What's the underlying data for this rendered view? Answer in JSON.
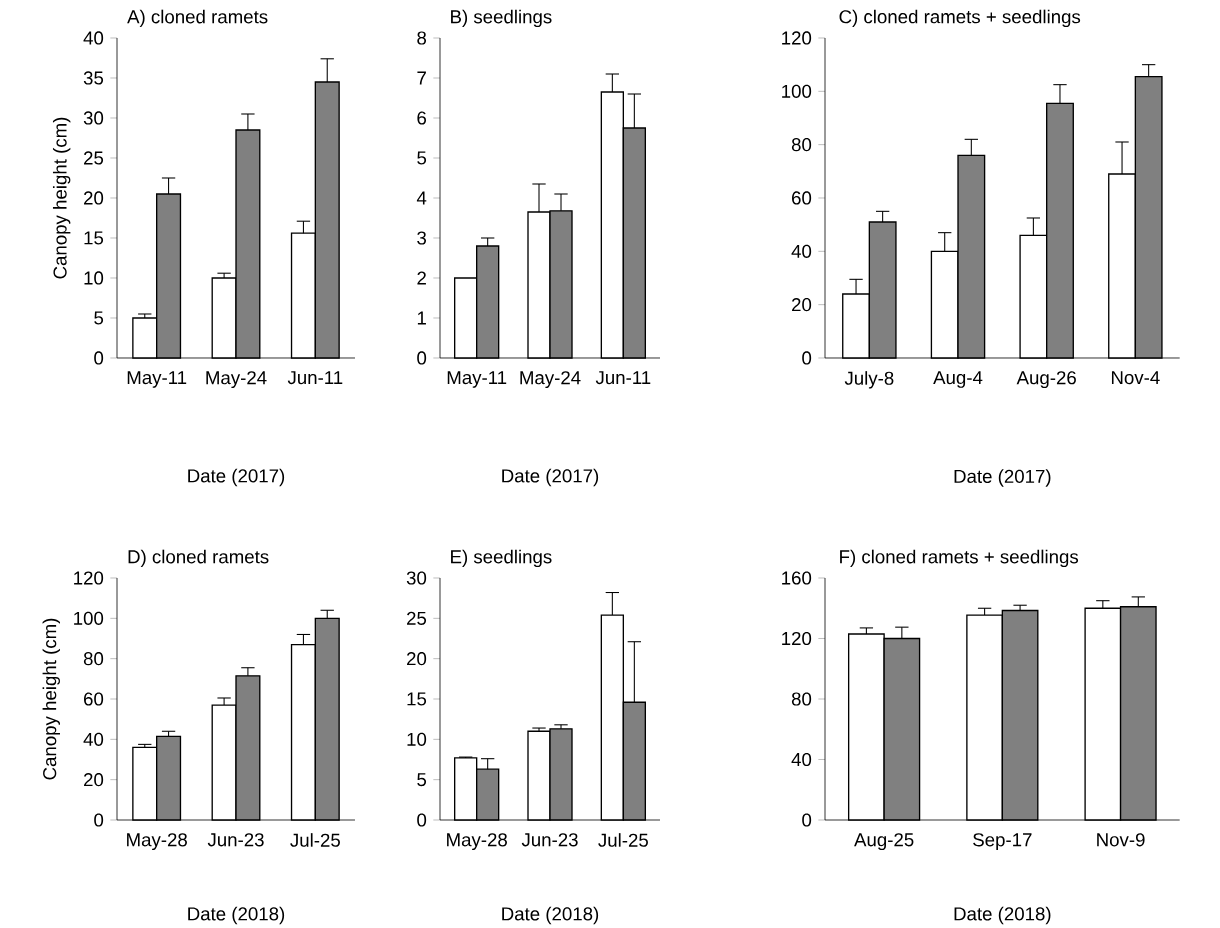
{
  "chart_data": [
    {
      "type": "bar",
      "title": "A) cloned ramets",
      "xlabel": "Date (2017)",
      "ylabel": "Canopy height (cm)",
      "categories": [
        "May-11",
        "May-24",
        "Jun-11"
      ],
      "ylim": [
        0,
        40
      ],
      "yticks": [
        0,
        5,
        10,
        15,
        20,
        25,
        30,
        35,
        40
      ],
      "series": [
        {
          "color": "#ffffff",
          "values": [
            5.0,
            10.0,
            15.6
          ],
          "errors": [
            [
              5.0,
              5.5
            ],
            [
              10.0,
              10.6
            ],
            [
              15.6,
              17.1
            ]
          ]
        },
        {
          "color": "#808080",
          "values": [
            20.5,
            28.5,
            34.5
          ],
          "errors": [
            [
              20.5,
              22.5
            ],
            [
              28.5,
              30.5
            ],
            [
              34.5,
              37.4
            ]
          ]
        }
      ]
    },
    {
      "type": "bar",
      "title": "B) seedlings",
      "xlabel": "Date (2017)",
      "categories": [
        "May-11",
        "May-24",
        "Jun-11"
      ],
      "ylim": [
        0,
        8
      ],
      "yticks": [
        0,
        1,
        2,
        3,
        4,
        5,
        6,
        7,
        8
      ],
      "series": [
        {
          "color": "#ffffff",
          "values": [
            2.0,
            3.65,
            6.65
          ],
          "errors": [
            null,
            [
              3.65,
              4.35
            ],
            [
              6.65,
              7.1
            ]
          ]
        },
        {
          "color": "#808080",
          "values": [
            2.8,
            3.68,
            5.75
          ],
          "errors": [
            [
              2.8,
              3.0
            ],
            [
              3.68,
              4.1
            ],
            [
              5.75,
              6.6
            ]
          ]
        }
      ]
    },
    {
      "type": "bar",
      "title": "C) cloned ramets + seedlings",
      "xlabel": "Date (2017)",
      "categories": [
        "July-8",
        "Aug-4",
        "Aug-26",
        "Nov-4"
      ],
      "ylim": [
        0,
        120
      ],
      "yticks": [
        0,
        20,
        40,
        60,
        80,
        100,
        120
      ],
      "series": [
        {
          "color": "#ffffff",
          "values": [
            24,
            40,
            46,
            69
          ],
          "errors": [
            [
              24,
              29.5
            ],
            [
              40,
              47
            ],
            [
              46,
              52.5
            ],
            [
              69,
              81
            ]
          ]
        },
        {
          "color": "#808080",
          "values": [
            51,
            76,
            95.5,
            105.5
          ],
          "errors": [
            [
              51,
              55
            ],
            [
              76,
              82
            ],
            [
              95.5,
              102.5
            ],
            [
              105.5,
              110
            ]
          ]
        }
      ]
    },
    {
      "type": "bar",
      "title": "D) cloned ramets",
      "xlabel": "Date (2018)",
      "ylabel": "Canopy height (cm)",
      "categories": [
        "May-28",
        "Jun-23",
        "Jul-25"
      ],
      "ylim": [
        0,
        120
      ],
      "yticks": [
        0,
        20,
        40,
        60,
        80,
        100,
        120
      ],
      "series": [
        {
          "color": "#ffffff",
          "values": [
            36,
            57,
            87
          ],
          "errors": [
            [
              36,
              37.5
            ],
            [
              57,
              60.5
            ],
            [
              87,
              92
            ]
          ]
        },
        {
          "color": "#808080",
          "values": [
            41.5,
            71.5,
            100
          ],
          "errors": [
            [
              41.5,
              44
            ],
            [
              71.5,
              75.5
            ],
            [
              100,
              104
            ]
          ]
        }
      ]
    },
    {
      "type": "bar",
      "title": "E) seedlings",
      "xlabel": "Date (2018)",
      "categories": [
        "May-28",
        "Jun-23",
        "Jul-25"
      ],
      "ylim": [
        0,
        30
      ],
      "yticks": [
        0,
        5,
        10,
        15,
        20,
        25,
        30
      ],
      "series": [
        {
          "color": "#ffffff",
          "values": [
            7.7,
            11.0,
            25.4
          ],
          "errors": [
            [
              7.7,
              7.8
            ],
            [
              11.0,
              11.4
            ],
            [
              25.4,
              28.2
            ]
          ]
        },
        {
          "color": "#808080",
          "values": [
            6.3,
            11.3,
            14.6
          ],
          "errors": [
            [
              6.3,
              7.6
            ],
            [
              11.3,
              11.8
            ],
            [
              14.6,
              22.1
            ]
          ]
        }
      ]
    },
    {
      "type": "bar",
      "title": "F) cloned ramets + seedlings",
      "xlabel": "Date (2018)",
      "categories": [
        "Aug-25",
        "Sep-17",
        "Nov-9"
      ],
      "ylim": [
        0,
        160
      ],
      "yticks": [
        0,
        40,
        80,
        120,
        160
      ],
      "series": [
        {
          "color": "#ffffff",
          "values": [
            123,
            135.5,
            140
          ],
          "errors": [
            [
              123,
              127
            ],
            [
              135.5,
              140
            ],
            [
              140,
              145
            ]
          ]
        },
        {
          "color": "#808080",
          "values": [
            120,
            138.5,
            141
          ],
          "errors": [
            [
              120,
              127.5
            ],
            [
              138.5,
              142
            ],
            [
              141,
              147.5
            ]
          ]
        }
      ]
    }
  ]
}
